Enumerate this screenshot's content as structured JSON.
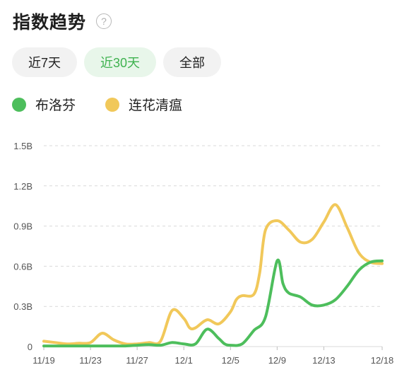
{
  "header": {
    "title": "指数趋势",
    "help_icon": "question-circle-icon",
    "help_glyph": "?"
  },
  "tabs": [
    {
      "label": "近7天",
      "active": false
    },
    {
      "label": "近30天",
      "active": true
    },
    {
      "label": "全部",
      "active": false
    }
  ],
  "colors": {
    "accent": "#3eb24f",
    "green": "#4dbe5c",
    "yellow": "#f1c85a",
    "grid": "#d9d9d9"
  },
  "chart_data": {
    "type": "line",
    "ylim": [
      0,
      1.5
    ],
    "ytick_values": [
      0,
      0.3,
      0.6,
      0.9,
      1.2,
      1.5
    ],
    "ytick_labels": [
      "0",
      "0.3B",
      "0.6B",
      "0.9B",
      "1.2B",
      "1.5B"
    ],
    "xlim": [
      0,
      29
    ],
    "xtick_positions": [
      0,
      4,
      8,
      12,
      16,
      20,
      24,
      29
    ],
    "xtick_labels": [
      "11/19",
      "11/23",
      "11/27",
      "12/1",
      "12/5",
      "12/9",
      "12/13",
      "12/18"
    ],
    "grid": true,
    "legend_position": "top-left",
    "series": [
      {
        "name": "布洛芬",
        "color": "#4dbe5c",
        "x": [
          0,
          1,
          2,
          3,
          4,
          5,
          6,
          7,
          8,
          9,
          10,
          11,
          12,
          13,
          14,
          15,
          15.5,
          16,
          17,
          18,
          19,
          20,
          20.5,
          21,
          22,
          23,
          24,
          25,
          26,
          27,
          28,
          29
        ],
        "y": [
          0.005,
          0.005,
          0.005,
          0.005,
          0.005,
          0.005,
          0.005,
          0.005,
          0.01,
          0.015,
          0.01,
          0.03,
          0.02,
          0.02,
          0.13,
          0.06,
          0.02,
          0.01,
          0.02,
          0.12,
          0.22,
          0.64,
          0.47,
          0.4,
          0.37,
          0.31,
          0.31,
          0.35,
          0.45,
          0.57,
          0.63,
          0.64
        ]
      },
      {
        "name": "连花清瘟",
        "color": "#f1c85a",
        "x": [
          0,
          1,
          2,
          3,
          4,
          5,
          6,
          7,
          8,
          9,
          10,
          11,
          12,
          12.5,
          13,
          14,
          15,
          16,
          16.5,
          17,
          18,
          18.5,
          19,
          20,
          21,
          22,
          23,
          24,
          25,
          26,
          27,
          28,
          29
        ],
        "y": [
          0.04,
          0.03,
          0.02,
          0.025,
          0.03,
          0.1,
          0.05,
          0.02,
          0.02,
          0.03,
          0.04,
          0.27,
          0.21,
          0.14,
          0.14,
          0.2,
          0.17,
          0.26,
          0.35,
          0.38,
          0.39,
          0.55,
          0.87,
          0.94,
          0.87,
          0.78,
          0.8,
          0.93,
          1.06,
          0.89,
          0.7,
          0.63,
          0.62
        ]
      }
    ]
  }
}
